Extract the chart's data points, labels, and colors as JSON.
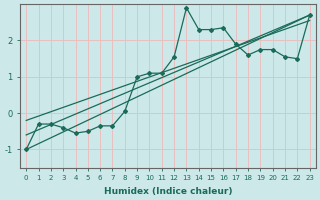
{
  "xlabel": "Humidex (Indice chaleur)",
  "background_color": "#cce8e8",
  "grid_color": "#e8c0c0",
  "line_color": "#1a6b5a",
  "x_data": [
    0,
    1,
    2,
    3,
    4,
    5,
    6,
    7,
    8,
    9,
    10,
    11,
    12,
    13,
    14,
    15,
    16,
    17,
    18,
    19,
    20,
    21,
    22,
    23
  ],
  "y_data": [
    -1.0,
    -0.3,
    -0.3,
    -0.4,
    -0.55,
    -0.5,
    -0.35,
    -0.35,
    0.05,
    1.0,
    1.1,
    1.1,
    1.55,
    2.9,
    2.3,
    2.3,
    2.35,
    1.9,
    1.6,
    1.75,
    1.75,
    1.55,
    1.5,
    2.7
  ],
  "xlim": [
    -0.5,
    23.5
  ],
  "ylim": [
    -1.5,
    3.0
  ],
  "yticks": [
    -1,
    0,
    1,
    2
  ],
  "xticks": [
    0,
    1,
    2,
    3,
    4,
    5,
    6,
    7,
    8,
    9,
    10,
    11,
    12,
    13,
    14,
    15,
    16,
    17,
    18,
    19,
    20,
    21,
    22,
    23
  ],
  "reg_lines": [
    {
      "x0": 0,
      "y0": -1.0,
      "x1": 23,
      "y1": 2.7
    },
    {
      "x0": 0,
      "y0": -0.6,
      "x1": 23,
      "y1": 2.7
    },
    {
      "x0": 0,
      "y0": -0.2,
      "x1": 23,
      "y1": 2.55
    }
  ]
}
